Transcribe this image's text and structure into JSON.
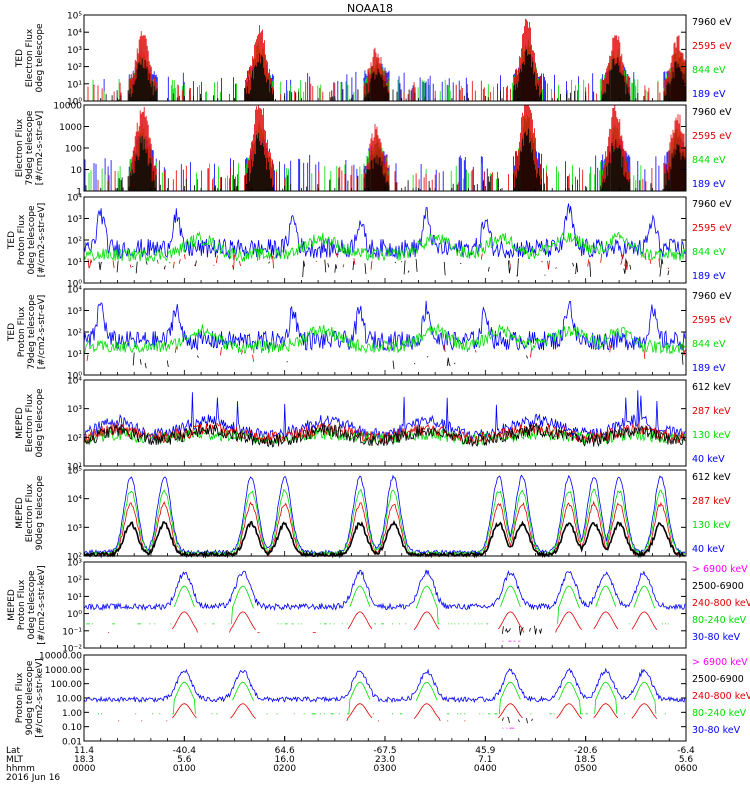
{
  "title": "NOAA18",
  "colors": {
    "black": "#000000",
    "red": "#e00000",
    "green": "#00dd00",
    "blue": "#0000ff",
    "magenta": "#ff00ff"
  },
  "chart_data": {
    "type": "multi-panel-timeseries",
    "panels": [
      {
        "ylabel": [
          "TED",
          "Electron Flux",
          "0deg telescope"
        ],
        "yticks": [
          "10⁰",
          "10¹",
          "10²",
          "10³",
          "10⁴",
          "10⁵"
        ],
        "ylog": [
          0,
          5
        ],
        "legend": [
          {
            "label": "7960 eV",
            "color": "#000000"
          },
          {
            "label": "2595 eV",
            "color": "#e00000"
          },
          {
            "label": "844 eV",
            "color": "#00dd00"
          },
          {
            "label": "189 eV",
            "color": "#0000ff"
          }
        ],
        "kind": "ted_e"
      },
      {
        "ylabel": [
          "Electron Flux",
          "79deg telescope",
          "[#/cm2-s-str-eV]"
        ],
        "yticks": [
          "1",
          "10",
          "100",
          "1000",
          "10000"
        ],
        "ylog": [
          0,
          4
        ],
        "legend": [
          {
            "label": "7960 eV",
            "color": "#000000"
          },
          {
            "label": "2595 eV",
            "color": "#e00000"
          },
          {
            "label": "844 eV",
            "color": "#00dd00"
          },
          {
            "label": "189 eV",
            "color": "#0000ff"
          }
        ],
        "kind": "ted_e"
      },
      {
        "ylabel": [
          "TED",
          "Proton Flux",
          "0deg telescope",
          "[#/cm2-s-str-eV]"
        ],
        "yticks": [
          "10⁰",
          "10¹",
          "10²",
          "10³",
          "10⁴"
        ],
        "ylog": [
          0,
          4
        ],
        "legend": [
          {
            "label": "7960 eV",
            "color": "#000000"
          },
          {
            "label": "2595 eV",
            "color": "#e00000"
          },
          {
            "label": "844 eV",
            "color": "#00dd00"
          },
          {
            "label": "189 eV",
            "color": "#0000ff"
          }
        ],
        "kind": "ted_p0"
      },
      {
        "ylabel": [
          "TED",
          "Proton Flux",
          "79deg telescope",
          "[#/cm2-s-str-eV]"
        ],
        "yticks": [
          "10⁰",
          "10¹",
          "10²",
          "10³",
          "10⁴"
        ],
        "ylog": [
          0,
          4
        ],
        "legend": [
          {
            "label": "7960 eV",
            "color": "#000000"
          },
          {
            "label": "2595 eV",
            "color": "#e00000"
          },
          {
            "label": "844 eV",
            "color": "#00dd00"
          },
          {
            "label": "189 eV",
            "color": "#0000ff"
          }
        ],
        "kind": "ted_p79"
      },
      {
        "ylabel": [
          "MEPED",
          "Electron Flux",
          "0deg telescope"
        ],
        "yticks": [
          "10¹",
          "10²",
          "10³",
          "10⁴"
        ],
        "ylog": [
          1,
          4.5
        ],
        "legend": [
          {
            "label": "612 keV",
            "color": "#000000"
          },
          {
            "label": "287 keV",
            "color": "#e00000"
          },
          {
            "label": "130 keV",
            "color": "#00dd00"
          },
          {
            "label": "40 keV",
            "color": "#0000ff"
          }
        ],
        "kind": "mep_e0"
      },
      {
        "ylabel": [
          "MEPED",
          "Electron Flux",
          "90deg telescope"
        ],
        "yticks": [
          "10²",
          "10³",
          "10⁴",
          "10⁵"
        ],
        "ylog": [
          2,
          5.3
        ],
        "legend": [
          {
            "label": "612 keV",
            "color": "#000000"
          },
          {
            "label": "287 keV",
            "color": "#e00000"
          },
          {
            "label": "130 keV",
            "color": "#00dd00"
          },
          {
            "label": "40 keV",
            "color": "#0000ff"
          }
        ],
        "kind": "mep_e90"
      },
      {
        "ylabel": [
          "MEPED",
          "Proton Flux",
          "0deg telescope",
          "[#/cm2-s-str-keV]"
        ],
        "yticks": [
          "10⁻²",
          "10⁻¹",
          "10⁰",
          "10¹",
          "10²",
          "10³"
        ],
        "ylog": [
          -2,
          3
        ],
        "legend": [
          {
            "label": "> 6900 keV",
            "color": "#ff00ff"
          },
          {
            "label": "2500-6900",
            "color": "#000000"
          },
          {
            "label": "240-800 keV",
            "color": "#e00000"
          },
          {
            "label": "80-240 keV",
            "color": "#00dd00"
          },
          {
            "label": "30-80 keV",
            "color": "#0000ff"
          }
        ],
        "kind": "mep_p0"
      },
      {
        "ylabel": [
          "Proton Flux",
          "90deg telescope",
          "[#/cm2-s-str-keV]"
        ],
        "yticks": [
          "0.01",
          "0.10",
          "1.00",
          "10.00",
          "100.00",
          "1000.00",
          "10000.00"
        ],
        "ylog": [
          -2,
          4
        ],
        "legend": [
          {
            "label": "> 6900 keV",
            "color": "#ff00ff"
          },
          {
            "label": "2500-6900",
            "color": "#000000"
          },
          {
            "label": "240-800 keV",
            "color": "#e00000"
          },
          {
            "label": "80-240 keV",
            "color": "#00dd00"
          },
          {
            "label": "30-80 keV",
            "color": "#0000ff"
          }
        ],
        "kind": "mep_p90"
      }
    ],
    "xaxis": {
      "row_labels": [
        "Lat",
        "MLT",
        "hhmm",
        "2016 Jun 16"
      ],
      "ticks": [
        {
          "lat": "11.4",
          "mlt": "18.3",
          "hhmm": "0000"
        },
        {
          "lat": "-40.4",
          "mlt": "5.6",
          "hhmm": "0100"
        },
        {
          "lat": "64.6",
          "mlt": "16.0",
          "hhmm": "0200"
        },
        {
          "lat": "-67.5",
          "mlt": "23.0",
          "hhmm": "0300"
        },
        {
          "lat": "45.9",
          "mlt": "7.1",
          "hhmm": "0400"
        },
        {
          "lat": "-20.6",
          "mlt": "18.5",
          "hhmm": "0500"
        },
        {
          "lat": "-6.4",
          "mlt": "5.6",
          "hhmm": "0600"
        }
      ],
      "range_minutes": [
        0,
        360
      ]
    }
  }
}
